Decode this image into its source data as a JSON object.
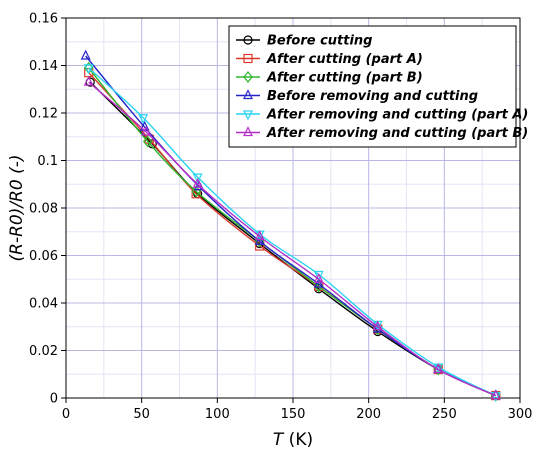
{
  "chart_data": {
    "type": "line",
    "xlabel": "T",
    "xlabel_unit": " (K)",
    "ylabel": "(R-R0)/R0 (-)",
    "xlim": [
      0,
      300
    ],
    "ylim": [
      0,
      0.16
    ],
    "xticks": [
      0,
      50,
      100,
      150,
      200,
      250,
      300
    ],
    "yticks": [
      0,
      0.02,
      0.04,
      0.06,
      0.08,
      0.1,
      0.12,
      0.14,
      0.16
    ],
    "xtick_labels": [
      "0",
      "50",
      "100",
      "150",
      "200",
      "250",
      "300"
    ],
    "ytick_labels": [
      "0",
      "0.02",
      "0.04",
      "0.06",
      "0.08",
      "0.1",
      "0.12",
      "0.14",
      "0.16"
    ],
    "grid": true,
    "legend_position": "top-right",
    "series": [
      {
        "name": "Before cutting",
        "color": "#000000",
        "marker": "circle",
        "x": [
          16,
          57,
          87,
          128,
          167,
          206,
          246,
          284
        ],
        "y": [
          0.133,
          0.107,
          0.086,
          0.065,
          0.046,
          0.028,
          0.012,
          0.001
        ]
      },
      {
        "name": "After cutting (part A)",
        "color": "#d93a2b",
        "marker": "square",
        "x": [
          15,
          55,
          86,
          128,
          167,
          206,
          246,
          284
        ],
        "y": [
          0.137,
          0.109,
          0.086,
          0.064,
          0.047,
          0.029,
          0.012,
          0.001
        ]
      },
      {
        "name": "After cutting (part B)",
        "color": "#2eb82e",
        "marker": "diamond",
        "x": [
          15,
          54,
          86,
          128,
          167,
          206,
          246,
          284
        ],
        "y": [
          0.139,
          0.108,
          0.087,
          0.066,
          0.047,
          0.029,
          0.012,
          0.001
        ]
      },
      {
        "name": "Before removing and cutting",
        "color": "#2424c8",
        "marker": "triangle-up",
        "x": [
          13,
          52,
          88,
          128,
          167,
          206,
          246,
          284
        ],
        "y": [
          0.144,
          0.114,
          0.089,
          0.066,
          0.048,
          0.029,
          0.012,
          0.001
        ]
      },
      {
        "name": "After removing and cutting (part A)",
        "color": "#29d4f0",
        "marker": "triangle-down",
        "x": [
          15,
          51,
          87,
          128,
          167,
          206,
          246,
          284
        ],
        "y": [
          0.139,
          0.118,
          0.093,
          0.069,
          0.052,
          0.031,
          0.013,
          0.001
        ]
      },
      {
        "name": "After removing and cutting (part B)",
        "color": "#b62ec8",
        "marker": "triangle-up",
        "x": [
          15,
          53,
          87,
          128,
          167,
          206,
          246,
          284
        ],
        "y": [
          0.133,
          0.112,
          0.09,
          0.068,
          0.05,
          0.03,
          0.012,
          0.001
        ]
      }
    ]
  }
}
